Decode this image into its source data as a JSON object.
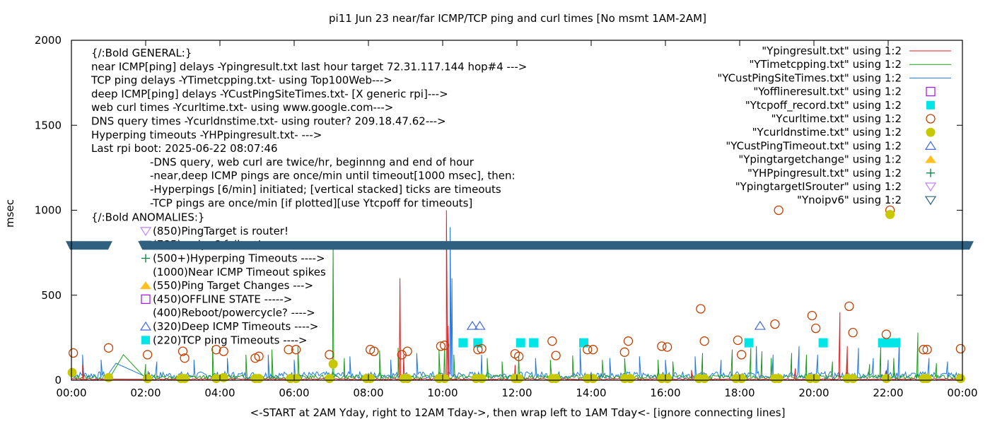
{
  "chart_data": {
    "type": "line",
    "title": "pi11 Jun 23  near/far ICMP/TCP ping and curl times [No msmt 1AM-2AM]",
    "xlabel": "<-START at 2AM Yday, right to 12AM Tday->, then wrap left to 1AM Tday<- [ignore connecting lines]",
    "ylabel": "msec",
    "xlim_hours": [
      0,
      24
    ],
    "ylim": [
      0,
      2000
    ],
    "x_ticks": [
      "00:00",
      "02:00",
      "04:00",
      "06:00",
      "08:00",
      "10:00",
      "12:00",
      "14:00",
      "16:00",
      "18:00",
      "20:00",
      "22:00",
      "00:00"
    ],
    "y_ticks": [
      "0",
      "500",
      "1000",
      "1500",
      "2000"
    ],
    "y_tick_values": [
      0,
      500,
      1000,
      1500,
      2000
    ],
    "grid": false,
    "legend_position": "top-right",
    "annotations": {
      "general": [
        "{/:Bold GENERAL:}",
        "near ICMP[ping] delays -Ypingresult.txt last hour target 72.31.117.144 hop#4 --->",
        "TCP ping delays -YTimetcpping.txt- using Top100Web--->",
        "deep ICMP[ping] delays -YCustPingSiteTimes.txt- [X generic rpi]--->",
        "web curl times -Ycurltime.txt- using www.google.com--->",
        "DNS query times -Ycurldnstime.txt- using router? 209.18.47.62--->",
        "Hyperping timeouts -YHPpingresult.txt- --->",
        "Last rpi boot: 2025-06-22 08:07:46"
      ],
      "notes": [
        "-DNS query, web curl are twice/hr, beginnng and end of hour",
        "-near,deep ICMP pings are once/min until timeout[1000 msec], then:",
        "  -Hyperpings [6/min] initiated; [vertical stacked] ticks are timeouts",
        "-TCP pings are once/min [if plotted][use Ytcpoff for timeouts]"
      ],
      "anomalies_title": "{/:Bold ANOMALIES:}",
      "anomalies": [
        {
          "marker": "Ytargetrouter",
          "text": "(850)PingTarget is router!"
        },
        {
          "marker": "Ynoipv6",
          "text": "(785)no ipv6 failure!"
        },
        {
          "marker": "YHP",
          "text": "(500+)Hyperping Timeouts ---->"
        },
        {
          "marker": "",
          "text": "(1000)Near ICMP Timeout spikes"
        },
        {
          "marker": "Ytargetchange",
          "text": "(550)Ping Target Changes --->"
        },
        {
          "marker": "Yoffline",
          "text": "(450)OFFLINE STATE ----->"
        },
        {
          "marker": "",
          "text": "(400)Reboot/powercycle? ---->"
        },
        {
          "marker": "YCustTimeout",
          "text": "(320)Deep ICMP Timeouts ---->"
        },
        {
          "marker": "Ytcpoff",
          "text": "(220)TCP ping Timeouts ---->"
        }
      ]
    },
    "legend": [
      {
        "id": "Yping",
        "label": "\"Ypingresult.txt\" using 1:2",
        "style": "line",
        "color": "#e41a1c"
      },
      {
        "id": "Ytcp",
        "label": "\"YTimetcpping.txt\" using 1:2",
        "style": "line",
        "color": "#1aa01a"
      },
      {
        "id": "Ycust",
        "label": "\"YCustPingSiteTimes.txt\" using 1:2",
        "style": "line",
        "color": "#1f78e0"
      },
      {
        "id": "Yoffline",
        "label": "\"Yofflineresult.txt\" using 1:2",
        "style": "open-square",
        "color": "#a020f0"
      },
      {
        "id": "Ytcpoff",
        "label": "\"Ytcpoff_record.txt\" using 1:2",
        "style": "filled-square",
        "color": "#00e5e5"
      },
      {
        "id": "Ycurl",
        "label": "\"Ycurltime.txt\" using 1:2",
        "style": "open-circle",
        "color": "#c04000"
      },
      {
        "id": "Ydns",
        "label": "\"Ycurldnstime.txt\" using 1:2",
        "style": "filled-circle",
        "color": "#c8c800"
      },
      {
        "id": "YCustTimeout",
        "label": "\"YCustPingTimeout.txt\" using 1:2",
        "style": "open-triangle-up",
        "color": "#4169e1"
      },
      {
        "id": "Ytargetchange",
        "label": "\"Ypingtargetchange\" using 1:2",
        "style": "filled-triangle-up",
        "color": "#ffc020"
      },
      {
        "id": "YHP",
        "label": "\"YHPpingresult.txt\" using 1:2",
        "style": "plus",
        "color": "#008040"
      },
      {
        "id": "Ytargetrouter",
        "label": "\"YpingtargetISrouter\" using 1:2",
        "style": "open-triangle-down",
        "color": "#c080ff"
      },
      {
        "id": "Ynoipv6",
        "label": "\"Ynoipv6\" using 1:2",
        "style": "open-triangle-down",
        "color": "#306080"
      }
    ],
    "series": {
      "Yping_spikes": [
        [
          0.3,
          90
        ],
        [
          2.1,
          45
        ],
        [
          8.85,
          600
        ],
        [
          8.95,
          150
        ],
        [
          10.1,
          1000
        ],
        [
          10.15,
          320
        ],
        [
          11.95,
          90
        ],
        [
          16.7,
          60
        ],
        [
          19.5,
          70
        ],
        [
          20.7,
          400
        ],
        [
          20.9,
          200
        ],
        [
          21.95,
          60
        ]
      ],
      "Ytcp_spikes": [
        [
          1.4,
          150
        ],
        [
          2.0,
          95
        ],
        [
          3.8,
          200
        ],
        [
          4.7,
          150
        ],
        [
          5.4,
          180
        ],
        [
          6.1,
          200
        ],
        [
          7.05,
          800
        ],
        [
          7.35,
          130
        ],
        [
          8.3,
          175
        ],
        [
          8.8,
          190
        ],
        [
          9.9,
          180
        ],
        [
          10.05,
          190
        ],
        [
          10.3,
          150
        ],
        [
          11.2,
          130
        ],
        [
          11.6,
          110
        ],
        [
          12.05,
          140
        ],
        [
          12.9,
          120
        ],
        [
          13.5,
          145
        ],
        [
          14.3,
          120
        ],
        [
          14.9,
          130
        ],
        [
          15.8,
          120
        ],
        [
          16.2,
          110
        ],
        [
          17.0,
          160
        ],
        [
          17.8,
          180
        ],
        [
          18.3,
          190
        ],
        [
          18.6,
          170
        ],
        [
          18.85,
          130
        ],
        [
          19.4,
          160
        ],
        [
          19.8,
          150
        ],
        [
          20.5,
          110
        ],
        [
          20.9,
          120
        ],
        [
          21.5,
          95
        ],
        [
          21.8,
          200
        ],
        [
          22.15,
          130
        ],
        [
          22.8,
          280
        ],
        [
          23.3,
          100
        ]
      ],
      "Ycust_spikes": [
        [
          0.3,
          150
        ],
        [
          0.8,
          120
        ],
        [
          1.2,
          100
        ],
        [
          2.3,
          110
        ],
        [
          3.3,
          120
        ],
        [
          4.2,
          130
        ],
        [
          5.3,
          150
        ],
        [
          6.0,
          120
        ],
        [
          7.5,
          140
        ],
        [
          8.6,
          120
        ],
        [
          9.3,
          160
        ],
        [
          10.2,
          900
        ],
        [
          10.25,
          600
        ],
        [
          11.05,
          150
        ],
        [
          12.5,
          130
        ],
        [
          13.7,
          190
        ],
        [
          14.5,
          130
        ],
        [
          15.3,
          140
        ],
        [
          16.0,
          120
        ],
        [
          16.8,
          140
        ],
        [
          17.5,
          120
        ],
        [
          18.45,
          200
        ],
        [
          18.9,
          150
        ],
        [
          19.6,
          200
        ],
        [
          20.1,
          150
        ],
        [
          21.2,
          190
        ],
        [
          21.6,
          130
        ],
        [
          22.0,
          120
        ],
        [
          22.3,
          250
        ],
        [
          23.1,
          130
        ],
        [
          23.6,
          110
        ]
      ],
      "Ycust_baseline": 40,
      "Ytcp_baseline": 25,
      "Yping_baseline": 8,
      "Yoffline": [],
      "Ytcpoff": [
        [
          10.55,
          220
        ],
        [
          10.95,
          220
        ],
        [
          12.1,
          220
        ],
        [
          12.45,
          220
        ],
        [
          13.8,
          220
        ],
        [
          18.25,
          220
        ],
        [
          20.25,
          220
        ],
        [
          21.85,
          220
        ],
        [
          22.05,
          220
        ],
        [
          22.2,
          220
        ]
      ],
      "Ycurl": [
        [
          0.05,
          160
        ],
        [
          1.0,
          190
        ],
        [
          2.05,
          150
        ],
        [
          3.0,
          170
        ],
        [
          3.05,
          130
        ],
        [
          3.9,
          180
        ],
        [
          4.1,
          170
        ],
        [
          4.95,
          130
        ],
        [
          5.05,
          140
        ],
        [
          5.85,
          180
        ],
        [
          6.05,
          180
        ],
        [
          6.95,
          150
        ],
        [
          8.05,
          180
        ],
        [
          8.15,
          170
        ],
        [
          8.9,
          150
        ],
        [
          9.05,
          170
        ],
        [
          9.95,
          200
        ],
        [
          10.05,
          205
        ],
        [
          10.95,
          180
        ],
        [
          11.05,
          185
        ],
        [
          11.95,
          155
        ],
        [
          12.05,
          140
        ],
        [
          12.95,
          230
        ],
        [
          13.05,
          145
        ],
        [
          13.9,
          180
        ],
        [
          14.05,
          180
        ],
        [
          14.9,
          165
        ],
        [
          15.0,
          230
        ],
        [
          15.9,
          200
        ],
        [
          16.05,
          195
        ],
        [
          16.95,
          420
        ],
        [
          17.05,
          230
        ],
        [
          17.95,
          235
        ],
        [
          18.05,
          150
        ],
        [
          18.95,
          330
        ],
        [
          19.05,
          1000
        ],
        [
          19.95,
          380
        ],
        [
          20.05,
          305
        ],
        [
          20.95,
          435
        ],
        [
          21.05,
          280
        ],
        [
          21.95,
          270
        ],
        [
          22.05,
          1000
        ],
        [
          22.95,
          180
        ],
        [
          23.05,
          180
        ],
        [
          23.95,
          185
        ]
      ],
      "Ydns": [
        [
          0.02,
          45
        ],
        [
          1.0,
          15
        ],
        [
          2.05,
          10
        ],
        [
          2.95,
          10
        ],
        [
          3.05,
          10
        ],
        [
          3.9,
          10
        ],
        [
          4.1,
          15
        ],
        [
          4.95,
          10
        ],
        [
          5.05,
          10
        ],
        [
          5.9,
          10
        ],
        [
          6.05,
          10
        ],
        [
          6.95,
          10
        ],
        [
          7.05,
          95
        ],
        [
          7.95,
          10
        ],
        [
          8.05,
          10
        ],
        [
          8.95,
          10
        ],
        [
          9.05,
          10
        ],
        [
          9.9,
          10
        ],
        [
          10.05,
          10
        ],
        [
          10.9,
          10
        ],
        [
          11.05,
          10
        ],
        [
          11.95,
          10
        ],
        [
          12.05,
          10
        ],
        [
          12.95,
          10
        ],
        [
          13.05,
          10
        ],
        [
          13.9,
          10
        ],
        [
          14.05,
          10
        ],
        [
          14.9,
          10
        ],
        [
          15.05,
          10
        ],
        [
          15.9,
          10
        ],
        [
          16.05,
          10
        ],
        [
          16.9,
          10
        ],
        [
          17.05,
          10
        ],
        [
          17.9,
          10
        ],
        [
          18.05,
          10
        ],
        [
          18.95,
          10
        ],
        [
          19.05,
          10
        ],
        [
          19.9,
          10
        ],
        [
          20.05,
          10
        ],
        [
          20.9,
          10
        ],
        [
          21.05,
          10
        ],
        [
          21.95,
          10
        ],
        [
          22.05,
          975
        ],
        [
          22.95,
          10
        ],
        [
          23.05,
          10
        ],
        [
          23.95,
          10
        ]
      ],
      "YCustTimeout": [
        [
          10.8,
          320
        ],
        [
          11.0,
          320
        ],
        [
          18.55,
          320
        ]
      ],
      "Ytargetchange": [],
      "YHP": [],
      "Ytargetrouter": [],
      "Ynoipv6_ranges": [
        [
          0.0,
          0.95
        ],
        [
          1.95,
          24.0
        ]
      ],
      "Ynoipv6_value": 785
    }
  }
}
